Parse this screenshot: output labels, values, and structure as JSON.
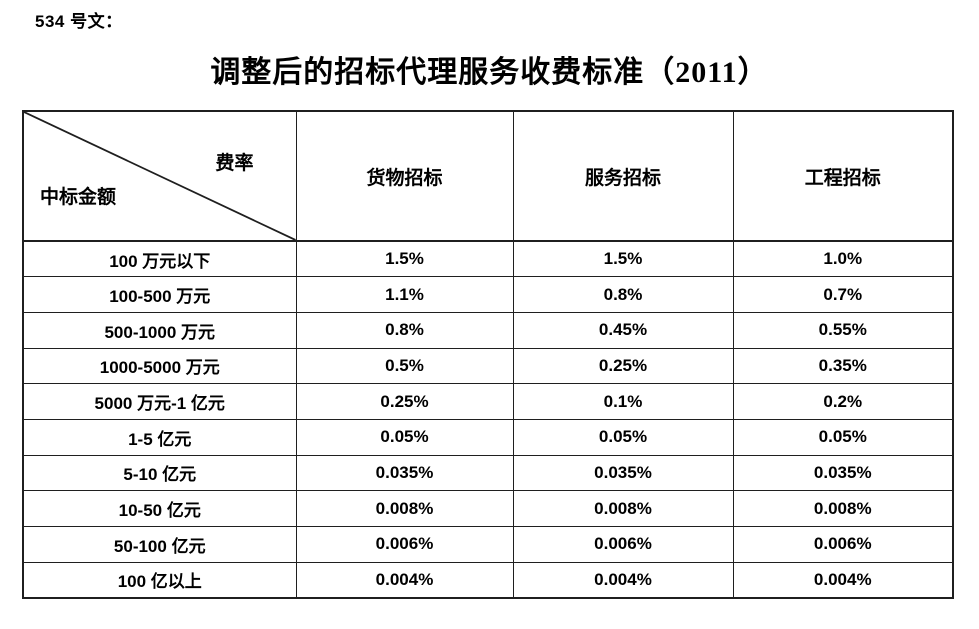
{
  "doc_ref": "534 号文：",
  "title": "调整后的招标代理服务收费标准（2011）",
  "table": {
    "corner": {
      "top_right": "费率",
      "bottom_left": "中标金额"
    },
    "columns": [
      "货物招标",
      "服务招标",
      "工程招标"
    ],
    "rows": [
      {
        "amount": "100 万元以下",
        "values": [
          "1.5%",
          "1.5%",
          "1.0%"
        ]
      },
      {
        "amount": "100-500 万元",
        "values": [
          "1.1%",
          "0.8%",
          "0.7%"
        ]
      },
      {
        "amount": "500-1000 万元",
        "values": [
          "0.8%",
          "0.45%",
          "0.55%"
        ]
      },
      {
        "amount": "1000-5000 万元",
        "values": [
          "0.5%",
          "0.25%",
          "0.35%"
        ]
      },
      {
        "amount": "5000 万元-1 亿元",
        "values": [
          "0.25%",
          "0.1%",
          "0.2%"
        ]
      },
      {
        "amount": "1-5 亿元",
        "values": [
          "0.05%",
          "0.05%",
          "0.05%"
        ]
      },
      {
        "amount": "5-10 亿元",
        "values": [
          "0.035%",
          "0.035%",
          "0.035%"
        ]
      },
      {
        "amount": "10-50 亿元",
        "values": [
          "0.008%",
          "0.008%",
          "0.008%"
        ]
      },
      {
        "amount": "50-100 亿元",
        "values": [
          "0.006%",
          "0.006%",
          "0.006%"
        ]
      },
      {
        "amount": "100 亿以上",
        "values": [
          "0.004%",
          "0.004%",
          "0.004%"
        ]
      }
    ]
  },
  "colors": {
    "text": "#000000",
    "border": "#1f1f1f",
    "background": "#ffffff"
  }
}
